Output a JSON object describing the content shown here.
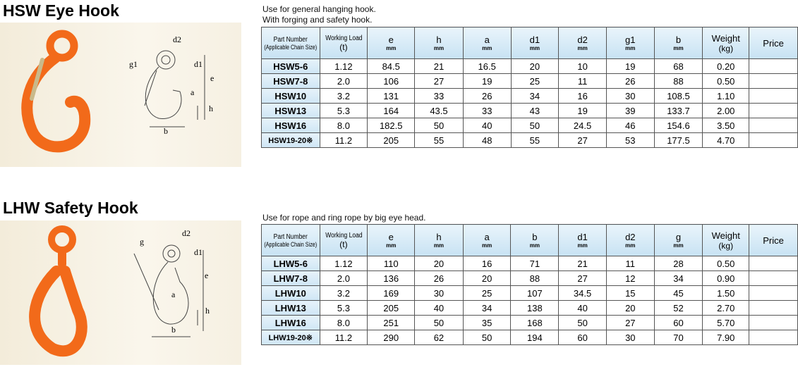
{
  "sections": [
    {
      "title": "HSW Eye Hook",
      "description": [
        "Use for general hanging hook.",
        "With forging and safety hook."
      ],
      "diagram_labels": [
        "d2",
        "g1",
        "d1",
        "a",
        "e",
        "h",
        "b"
      ],
      "table": {
        "headers": [
          {
            "label": "Part Number",
            "unit": "(Applicable Chain Size)"
          },
          {
            "label": "Working Load",
            "unit": "(t)"
          },
          {
            "label": "e",
            "unit": "mm"
          },
          {
            "label": "h",
            "unit": "mm"
          },
          {
            "label": "a",
            "unit": "mm"
          },
          {
            "label": "d1",
            "unit": "mm"
          },
          {
            "label": "d2",
            "unit": "mm"
          },
          {
            "label": "g1",
            "unit": "mm"
          },
          {
            "label": "b",
            "unit": "mm"
          },
          {
            "label": "Weight",
            "unit": "(kg)"
          },
          {
            "label": "Price"
          }
        ],
        "rows": [
          [
            "HSW5-6",
            "1.12",
            "84.5",
            "21",
            "16.5",
            "20",
            "10",
            "19",
            "68",
            "0.20"
          ],
          [
            "HSW7-8",
            "2.0",
            "106",
            "27",
            "19",
            "25",
            "11",
            "26",
            "88",
            "0.50"
          ],
          [
            "HSW10",
            "3.2",
            "131",
            "33",
            "26",
            "34",
            "16",
            "30",
            "108.5",
            "1.10"
          ],
          [
            "HSW13",
            "5.3",
            "164",
            "43.5",
            "33",
            "43",
            "19",
            "39",
            "133.7",
            "2.00"
          ],
          [
            "HSW16",
            "8.0",
            "182.5",
            "50",
            "40",
            "50",
            "24.5",
            "46",
            "154.6",
            "3.50"
          ],
          [
            "HSW19-20※",
            "11.2",
            "205",
            "55",
            "48",
            "55",
            "27",
            "53",
            "177.5",
            "4.70"
          ]
        ]
      }
    },
    {
      "title": "LHW Safety Hook",
      "description": [
        "Use for rope and ring rope by big eye head."
      ],
      "diagram_labels": [
        "d2",
        "g",
        "d1",
        "e",
        "a",
        "h",
        "b"
      ],
      "table": {
        "headers": [
          {
            "label": "Part Number",
            "unit": "(Applicable Chain Size)"
          },
          {
            "label": "Working Load",
            "unit": "(t)"
          },
          {
            "label": "e",
            "unit": "mm"
          },
          {
            "label": "h",
            "unit": "mm"
          },
          {
            "label": "a",
            "unit": "mm"
          },
          {
            "label": "b",
            "unit": "mm"
          },
          {
            "label": "d1",
            "unit": "mm"
          },
          {
            "label": "d2",
            "unit": "mm"
          },
          {
            "label": "g",
            "unit": "mm"
          },
          {
            "label": "Weight",
            "unit": "(kg)"
          },
          {
            "label": "Price"
          }
        ],
        "rows": [
          [
            "LHW5-6",
            "1.12",
            "110",
            "20",
            "16",
            "71",
            "21",
            "11",
            "28",
            "0.50"
          ],
          [
            "LHW7-8",
            "2.0",
            "136",
            "26",
            "20",
            "88",
            "27",
            "12",
            "34",
            "0.90"
          ],
          [
            "LHW10",
            "3.2",
            "169",
            "30",
            "25",
            "107",
            "34.5",
            "15",
            "45",
            "1.50"
          ],
          [
            "LHW13",
            "5.3",
            "205",
            "40",
            "34",
            "138",
            "40",
            "20",
            "52",
            "2.70"
          ],
          [
            "LHW16",
            "8.0",
            "251",
            "50",
            "35",
            "168",
            "50",
            "27",
            "60",
            "5.70"
          ],
          [
            "LHW19-20※",
            "11.2",
            "290",
            "62",
            "50",
            "194",
            "60",
            "30",
            "70",
            "7.90"
          ]
        ]
      }
    }
  ]
}
